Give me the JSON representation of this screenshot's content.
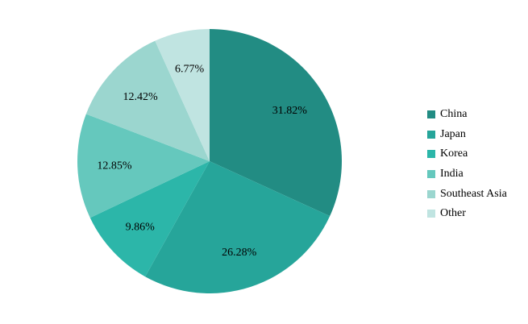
{
  "chart_data": {
    "type": "pie",
    "categories": [
      "China",
      "Japan",
      "Korea",
      "India",
      "Southeast Asia",
      "Other"
    ],
    "values": [
      31.82,
      26.28,
      9.86,
      12.85,
      12.42,
      6.77
    ],
    "labels": [
      "31.82%",
      "26.28%",
      "9.86%",
      "12.85%",
      "12.42%",
      "6.77%"
    ],
    "colors": [
      "#228c83",
      "#26a59a",
      "#2cb6a9",
      "#65c8bd",
      "#9bd6cf",
      "#c0e4e1"
    ],
    "start": "top",
    "direction": "clockwise",
    "legend_position": "right"
  }
}
